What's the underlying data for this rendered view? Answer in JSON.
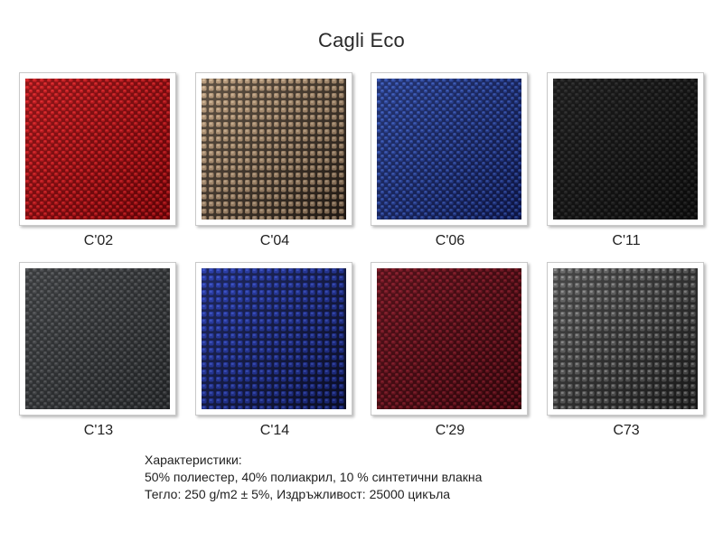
{
  "title": "Cagli Eco",
  "swatches": [
    {
      "code": "C'02",
      "base": "#b4141a",
      "light": "#f03a3c",
      "dark": "#5e0306",
      "holes": false,
      "icon": "red-fabric-swatch"
    },
    {
      "code": "C'04",
      "base": "#a7896b",
      "light": "#dcc2a2",
      "dark": "#1e1712",
      "holes": true,
      "icon": "beige-fabric-swatch"
    },
    {
      "code": "C'06",
      "base": "#233a8e",
      "light": "#5273cf",
      "dark": "#0d1440",
      "holes": false,
      "icon": "blue-fabric-swatch"
    },
    {
      "code": "C'11",
      "base": "#1f1f1f",
      "light": "#3c3c3c",
      "dark": "#0a0a0a",
      "holes": false,
      "icon": "black-fabric-swatch"
    },
    {
      "code": "C'13",
      "base": "#3f4143",
      "light": "#6b6d70",
      "dark": "#202224",
      "holes": false,
      "icon": "dark-grey-fabric-swatch"
    },
    {
      "code": "C'14",
      "base": "#1f2f92",
      "light": "#4860d6",
      "dark": "#0a0c22",
      "holes": true,
      "icon": "royal-blue-fabric-swatch"
    },
    {
      "code": "C'29",
      "base": "#6a1420",
      "light": "#9b2a38",
      "dark": "#2e050a",
      "holes": false,
      "icon": "burgundy-fabric-swatch"
    },
    {
      "code": "C73",
      "base": "#4e4e4e",
      "light": "#a3a3a3",
      "dark": "#171717",
      "holes": true,
      "icon": "grey-black-fabric-swatch"
    }
  ],
  "specs": {
    "heading": "Характеристики:",
    "composition": "50% полиестер, 40% полиакрил, 10 % синтетични влакна",
    "weight_durability": "Тегло: 250 g/m2 ± 5%, Издръжливост: 25000 цикъла"
  }
}
